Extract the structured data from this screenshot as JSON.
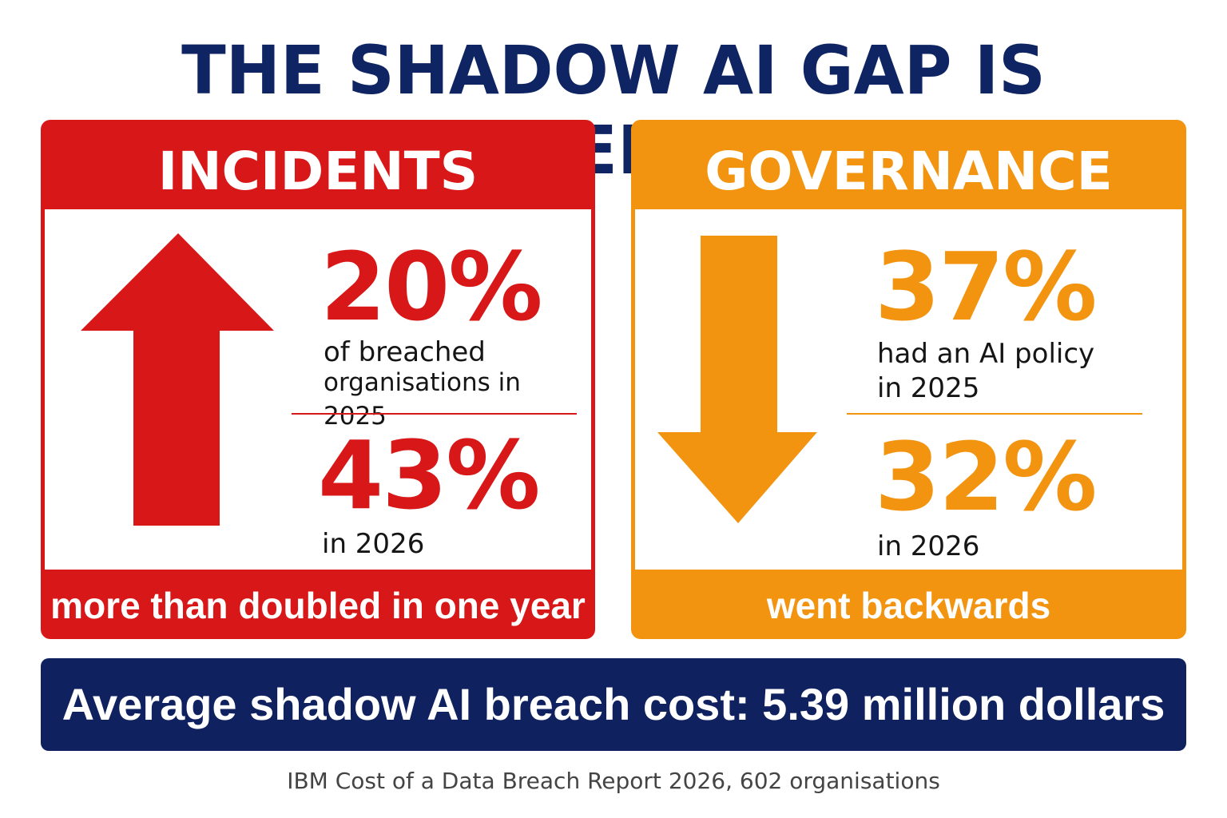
{
  "title": "THE SHADOW AI GAP IS WIDENING",
  "colors": {
    "navy": "#10215f",
    "incidents_red": "#d81818",
    "governance_orange": "#f39410"
  },
  "incidents": {
    "heading": "INCIDENTS",
    "arrow_icon": "arrow-up-icon",
    "stat_2025": "20%",
    "label_2025_line1": "of breached",
    "label_2025_line2": "organisations in 2025",
    "stat_2026": "43%",
    "label_2026": "in 2026",
    "footer": "more than doubled in one year"
  },
  "governance": {
    "heading": "GOVERNANCE",
    "arrow_icon": "arrow-down-icon",
    "stat_2025": "37%",
    "label_2025_line1": "had an AI policy",
    "label_2025_line2": "in 2025",
    "stat_2026": "32%",
    "label_2026": "in 2026",
    "footer": "went backwards"
  },
  "banner": "Average shadow AI breach cost: 5.39 million dollars",
  "source": "IBM Cost of a Data Breach Report 2026, 602 organisations"
}
